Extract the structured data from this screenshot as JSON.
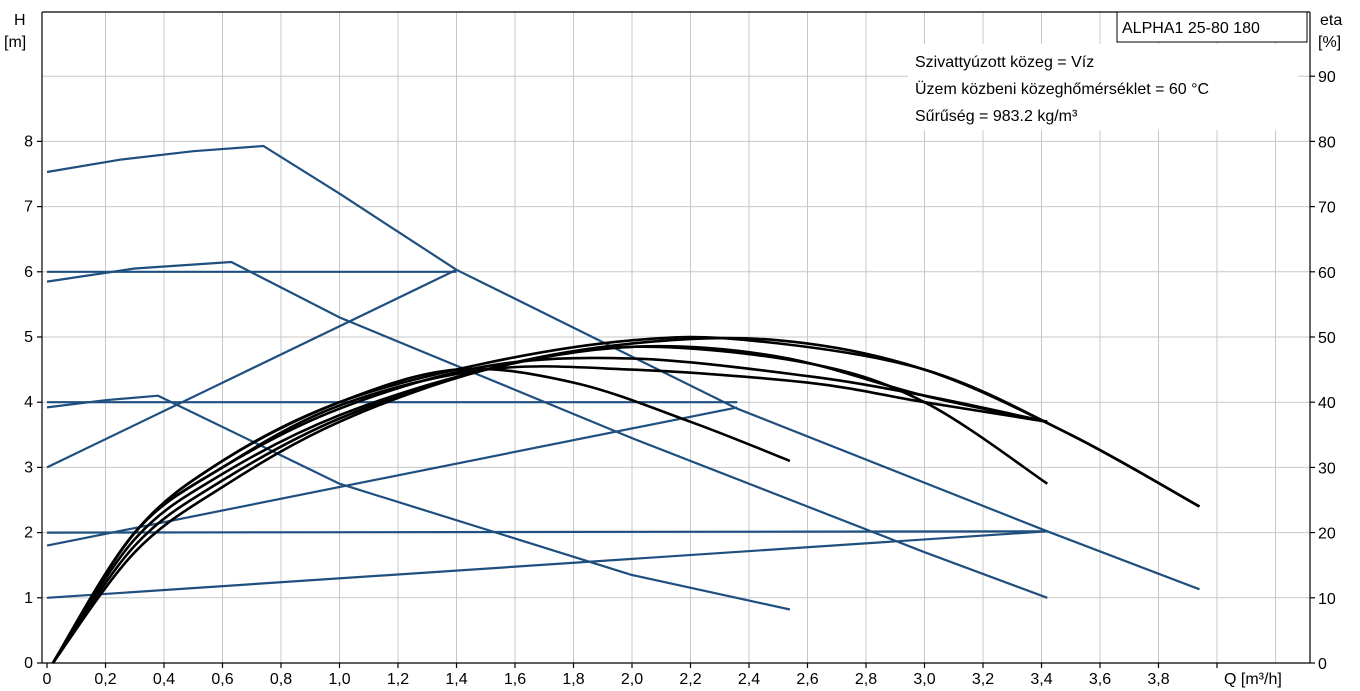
{
  "chart_data": {
    "type": "line",
    "title_box": "ALPHA1 25-80 180",
    "info_lines": [
      "Szivattyúzott közeg = Víz",
      "Üzem közbeni közeghőmérséklet = 60 °C",
      "Sűrűség = 983.2 kg/m³"
    ],
    "xlabel": "Q [m³/h]",
    "ylabel_left": [
      "H",
      "[m]"
    ],
    "ylabel_right": [
      "eta",
      "[%]"
    ],
    "xlim": [
      0,
      4.2
    ],
    "ylim_left": [
      0,
      9.2
    ],
    "ylim_right": [
      0,
      92
    ],
    "x_ticks": [
      "0",
      "0,2",
      "0,4",
      "0,6",
      "0,8",
      "1,0",
      "1,2",
      "1,4",
      "1,6",
      "1,8",
      "2,0",
      "2,2",
      "2,4",
      "2,6",
      "2,8",
      "3,0",
      "3,2",
      "3,4",
      "3,6",
      "3,8"
    ],
    "y_left_ticks": [
      "0",
      "1",
      "2",
      "3",
      "4",
      "5",
      "6",
      "7",
      "8"
    ],
    "y_right_ticks": [
      "0",
      "10",
      "20",
      "30",
      "40",
      "50",
      "60",
      "70",
      "80",
      "90"
    ],
    "grid": true,
    "colors": {
      "head": "#1f4f7f",
      "eta": "#000000"
    },
    "head_series": [
      {
        "points": [
          [
            0,
            7.53
          ],
          [
            0.25,
            7.72
          ],
          [
            0.5,
            7.85
          ],
          [
            0.74,
            7.93
          ],
          [
            1.0,
            7.2
          ],
          [
            1.4,
            6.03
          ],
          [
            2.36,
            3.9
          ],
          [
            3.42,
            2.02
          ],
          [
            3.94,
            1.13
          ]
        ]
      },
      {
        "points": [
          [
            0,
            5.85
          ],
          [
            0.3,
            6.05
          ],
          [
            0.63,
            6.15
          ],
          [
            1.0,
            5.3
          ],
          [
            2.0,
            3.45
          ],
          [
            3.0,
            1.7
          ],
          [
            3.42,
            1.0
          ]
        ]
      },
      {
        "points": [
          [
            0,
            3.92
          ],
          [
            0.2,
            4.03
          ],
          [
            0.38,
            4.1
          ],
          [
            1.0,
            2.75
          ],
          [
            2.0,
            1.35
          ],
          [
            2.54,
            0.82
          ]
        ]
      },
      {
        "points": [
          [
            0,
            6.0
          ],
          [
            1.4,
            6.0
          ]
        ]
      },
      {
        "points": [
          [
            0,
            3.0
          ],
          [
            1.4,
            6.03
          ]
        ]
      },
      {
        "points": [
          [
            0,
            4.0
          ],
          [
            2.36,
            4.0
          ]
        ]
      },
      {
        "points": [
          [
            0,
            1.8
          ],
          [
            2.36,
            3.92
          ]
        ]
      },
      {
        "points": [
          [
            0,
            2.0
          ],
          [
            3.42,
            2.02
          ]
        ]
      },
      {
        "points": [
          [
            0,
            1.0
          ],
          [
            3.42,
            2.02
          ]
        ]
      }
    ],
    "eta_series": [
      {
        "points": [
          [
            0.02,
            0
          ],
          [
            0.3,
            20
          ],
          [
            0.6,
            31
          ],
          [
            1.0,
            40
          ],
          [
            1.4,
            45
          ],
          [
            1.8,
            43
          ],
          [
            2.2,
            37
          ],
          [
            2.54,
            31
          ]
        ]
      },
      {
        "points": [
          [
            0.02,
            0
          ],
          [
            0.3,
            20
          ],
          [
            0.6,
            30
          ],
          [
            1.0,
            39.5
          ],
          [
            1.5,
            45
          ],
          [
            2.0,
            45
          ],
          [
            2.6,
            43
          ],
          [
            3.0,
            40
          ],
          [
            3.42,
            37
          ]
        ]
      },
      {
        "points": [
          [
            0.02,
            0
          ],
          [
            0.3,
            20
          ],
          [
            0.6,
            30
          ],
          [
            1.0,
            39
          ],
          [
            1.5,
            45.5
          ],
          [
            2.0,
            46.7
          ],
          [
            2.6,
            44
          ],
          [
            3.0,
            41
          ],
          [
            3.42,
            37
          ]
        ]
      },
      {
        "points": [
          [
            0.02,
            0
          ],
          [
            0.3,
            19
          ],
          [
            0.6,
            29
          ],
          [
            1.0,
            38
          ],
          [
            1.5,
            45
          ],
          [
            2.0,
            48.5
          ],
          [
            2.5,
            47
          ],
          [
            3.0,
            41
          ],
          [
            3.42,
            37
          ]
        ]
      },
      {
        "points": [
          [
            0.02,
            0
          ],
          [
            0.3,
            18
          ],
          [
            0.6,
            28
          ],
          [
            1.0,
            37.5
          ],
          [
            1.5,
            45
          ],
          [
            2.0,
            48.5
          ],
          [
            2.6,
            46
          ],
          [
            3.0,
            40
          ],
          [
            3.42,
            27.5
          ]
        ]
      },
      {
        "points": [
          [
            0.02,
            0
          ],
          [
            0.3,
            20
          ],
          [
            0.6,
            31
          ],
          [
            1.0,
            40
          ],
          [
            1.5,
            46
          ],
          [
            2.0,
            49.5
          ],
          [
            2.4,
            49.5
          ],
          [
            3.0,
            45
          ],
          [
            3.5,
            35
          ],
          [
            3.94,
            24
          ]
        ]
      },
      {
        "points": [
          [
            0.02,
            0
          ],
          [
            0.3,
            17
          ],
          [
            0.6,
            27
          ],
          [
            1.0,
            37
          ],
          [
            1.5,
            45
          ],
          [
            2.0,
            49
          ],
          [
            2.5,
            49.5
          ],
          [
            3.0,
            45
          ],
          [
            3.5,
            35
          ],
          [
            3.94,
            24
          ]
        ]
      }
    ]
  }
}
